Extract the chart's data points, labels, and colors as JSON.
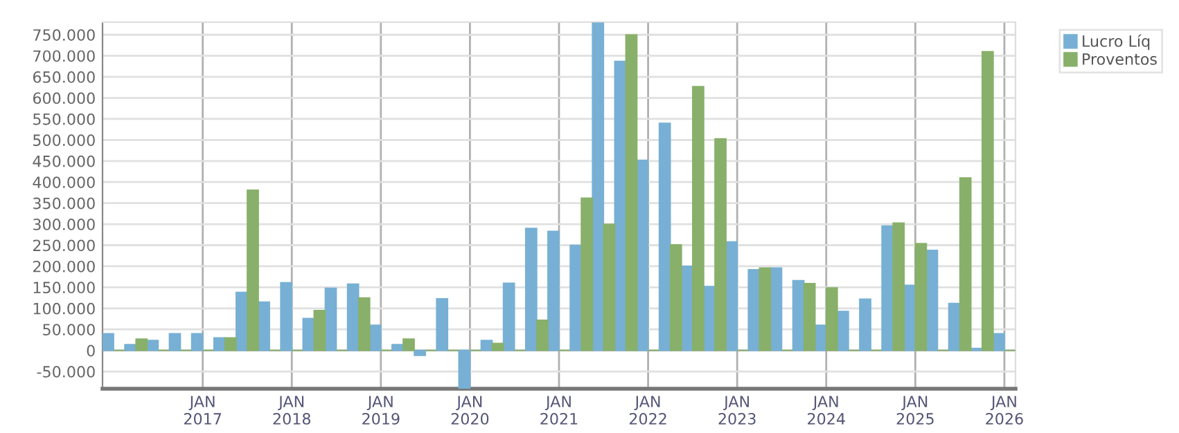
{
  "chart_data": {
    "type": "bar",
    "categories": [
      null,
      null,
      null,
      null,
      "JAN\n2017",
      null,
      null,
      null,
      "JAN\n2018",
      null,
      null,
      null,
      "JAN\n2019",
      null,
      null,
      null,
      "JAN\n2020",
      null,
      null,
      null,
      "JAN\n2021",
      null,
      null,
      null,
      "JAN\n2022",
      null,
      null,
      null,
      "JAN\n2023",
      null,
      null,
      null,
      "JAN\n2024",
      null,
      null,
      null,
      "JAN\n2025",
      null,
      null,
      null,
      "JAN\n2026"
    ],
    "series": [
      {
        "name": "Lucro Líq",
        "color": "#77b0d4",
        "values": [
          40000,
          14000,
          24000,
          40000,
          40000,
          30000,
          138000,
          115000,
          161000,
          76000,
          148000,
          158000,
          60000,
          14000,
          -12000,
          123000,
          -91000,
          24000,
          160000,
          290000,
          283000,
          250000,
          778000,
          687000,
          452000,
          540000,
          200000,
          152000,
          258000,
          192000,
          196000,
          166000,
          60000,
          93000,
          122000,
          296000,
          155000,
          238000,
          112000,
          5000,
          40000
        ]
      },
      {
        "name": "Proventos",
        "color": "#88b06a",
        "values": [
          0,
          27000,
          0,
          0,
          0,
          30000,
          381000,
          0,
          0,
          95000,
          0,
          125000,
          0,
          27000,
          0,
          0,
          0,
          17000,
          0,
          72000,
          0,
          362000,
          300000,
          750000,
          0,
          251000,
          627000,
          503000,
          0,
          196000,
          0,
          159000,
          149000,
          0,
          0,
          303000,
          254000,
          0,
          410000,
          710000,
          0
        ]
      }
    ],
    "ylim": [
      -91000,
      780000
    ],
    "yticks": [
      {
        "value": -50000,
        "label": "-50.000"
      },
      0,
      {
        "value": 50000,
        "label": "50.000"
      },
      {
        "value": 100000,
        "label": "100.000"
      },
      {
        "value": 150000,
        "label": "150.000"
      },
      {
        "value": 200000,
        "label": "200.000"
      },
      {
        "value": 250000,
        "label": "250.000"
      },
      {
        "value": 300000,
        "label": "300.000"
      },
      {
        "value": 350000,
        "label": "350.000"
      },
      {
        "value": 400000,
        "label": "400.000"
      },
      {
        "value": 450000,
        "label": "450.000"
      },
      {
        "value": 500000,
        "label": "500.000"
      },
      {
        "value": 550000,
        "label": "550.000"
      },
      {
        "value": 600000,
        "label": "600.000"
      },
      {
        "value": 650000,
        "label": "650.000"
      },
      {
        "value": 700000,
        "label": "700.000"
      },
      {
        "value": 750000,
        "label": "750.000"
      }
    ],
    "grid": true,
    "legend": "top right"
  }
}
